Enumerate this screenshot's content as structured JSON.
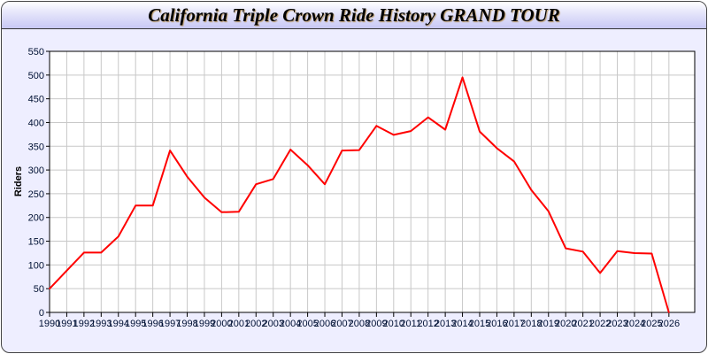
{
  "chart_data": {
    "type": "line",
    "title": "California Triple Crown Ride History GRAND TOUR",
    "xlabel": "",
    "ylabel": "Riders",
    "x": [
      1990,
      1991,
      1992,
      1993,
      1994,
      1995,
      1996,
      1997,
      1998,
      1999,
      2000,
      2001,
      2002,
      2003,
      2004,
      2005,
      2006,
      2007,
      2008,
      2009,
      2010,
      2011,
      2012,
      2013,
      2014,
      2015,
      2016,
      2017,
      2018,
      2019,
      2020,
      2021,
      2022,
      2023,
      2024,
      2025,
      2026
    ],
    "series": [
      {
        "values": [
          50,
          88,
          126,
          126,
          160,
          225,
          225,
          341,
          286,
          242,
          211,
          212,
          270,
          281,
          343,
          310,
          270,
          341,
          342,
          393,
          374,
          382,
          411,
          385,
          495,
          381,
          346,
          318,
          258,
          213,
          135,
          128,
          83,
          129,
          125,
          124,
          0
        ]
      }
    ],
    "xlim": [
      1990,
      2027.5
    ],
    "ylim": [
      0,
      550
    ],
    "yticks": [
      0,
      50,
      100,
      150,
      200,
      250,
      300,
      350,
      400,
      450,
      500,
      550
    ],
    "grid": true,
    "legend": "none",
    "colors": {
      "line": "#ff0000",
      "grid": "#c8c8c8",
      "background": "#eeeeff",
      "plot_background": "#ffffff"
    }
  }
}
